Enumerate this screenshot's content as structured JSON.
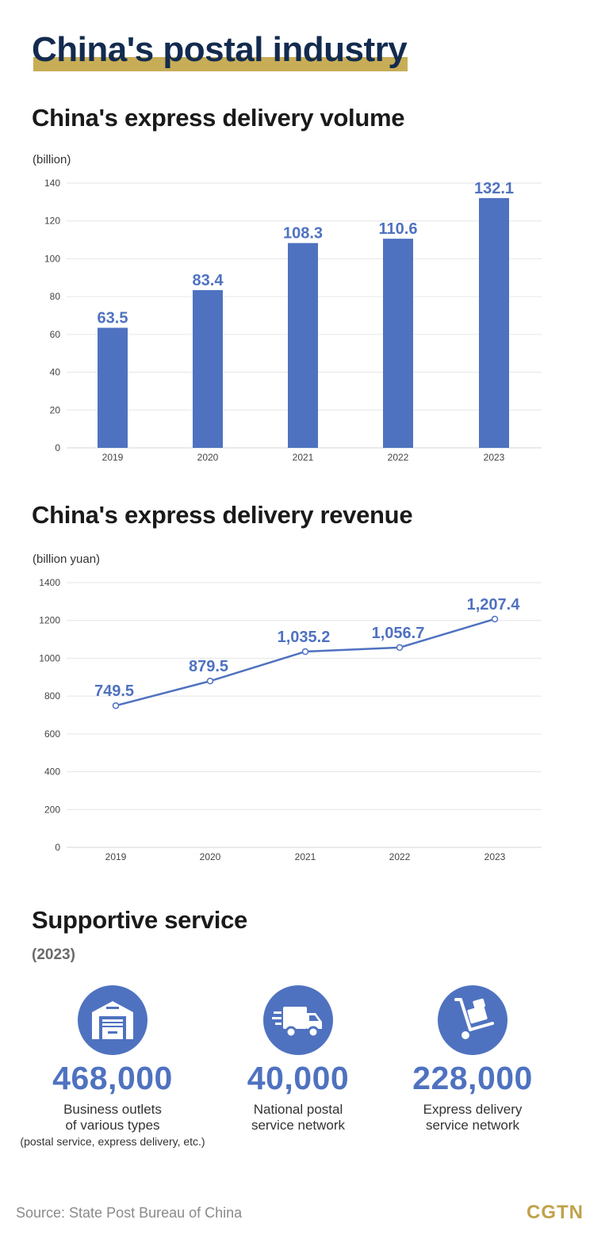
{
  "header": {
    "title": "China's postal industry"
  },
  "chart_data": [
    {
      "type": "bar",
      "title": "China's express delivery volume",
      "ylabel": "(billion)",
      "categories": [
        "2019",
        "2020",
        "2021",
        "2022",
        "2023"
      ],
      "values": [
        63.5,
        83.4,
        108.3,
        110.6,
        132.1
      ],
      "value_labels": [
        "63.5",
        "83.4",
        "108.3",
        "110.6",
        "132.1"
      ],
      "yticks": [
        0,
        20,
        40,
        60,
        80,
        100,
        120,
        140
      ],
      "ylim": [
        0,
        140
      ],
      "grid": true,
      "color": "#4f72c0"
    },
    {
      "type": "line",
      "title": "China's express delivery revenue",
      "ylabel": "(billion yuan)",
      "categories": [
        "2019",
        "2020",
        "2021",
        "2022",
        "2023"
      ],
      "values": [
        749.5,
        879.5,
        1035.2,
        1056.7,
        1207.4
      ],
      "value_labels": [
        "749.5",
        "879.5",
        "1,035.2",
        "1,056.7",
        "1,207.4"
      ],
      "yticks": [
        0,
        200,
        400,
        600,
        800,
        1000,
        1200,
        1400
      ],
      "ylim": [
        0,
        1400
      ],
      "grid": true,
      "color": "#4f72c0"
    }
  ],
  "support": {
    "title": "Supportive service",
    "year": "(2023)",
    "items": [
      {
        "icon": "warehouse-icon",
        "value": "468,000",
        "label_line1": "Business outlets",
        "label_line2": "of various types",
        "sub": "(postal service, express delivery, etc.)"
      },
      {
        "icon": "delivery-truck-icon",
        "value": "40,000",
        "label_line1": "National postal",
        "label_line2": "service network"
      },
      {
        "icon": "hand-truck-icon",
        "value": "228,000",
        "label_line1": "Express delivery",
        "label_line2": "service network"
      }
    ]
  },
  "footer": {
    "source": "Source: State Post Bureau of China",
    "logo": "CGTN"
  },
  "colors": {
    "accent": "#4f72c0",
    "title": "#132b4f",
    "underline": "#c7ad56",
    "logo": "#bfa24a"
  }
}
